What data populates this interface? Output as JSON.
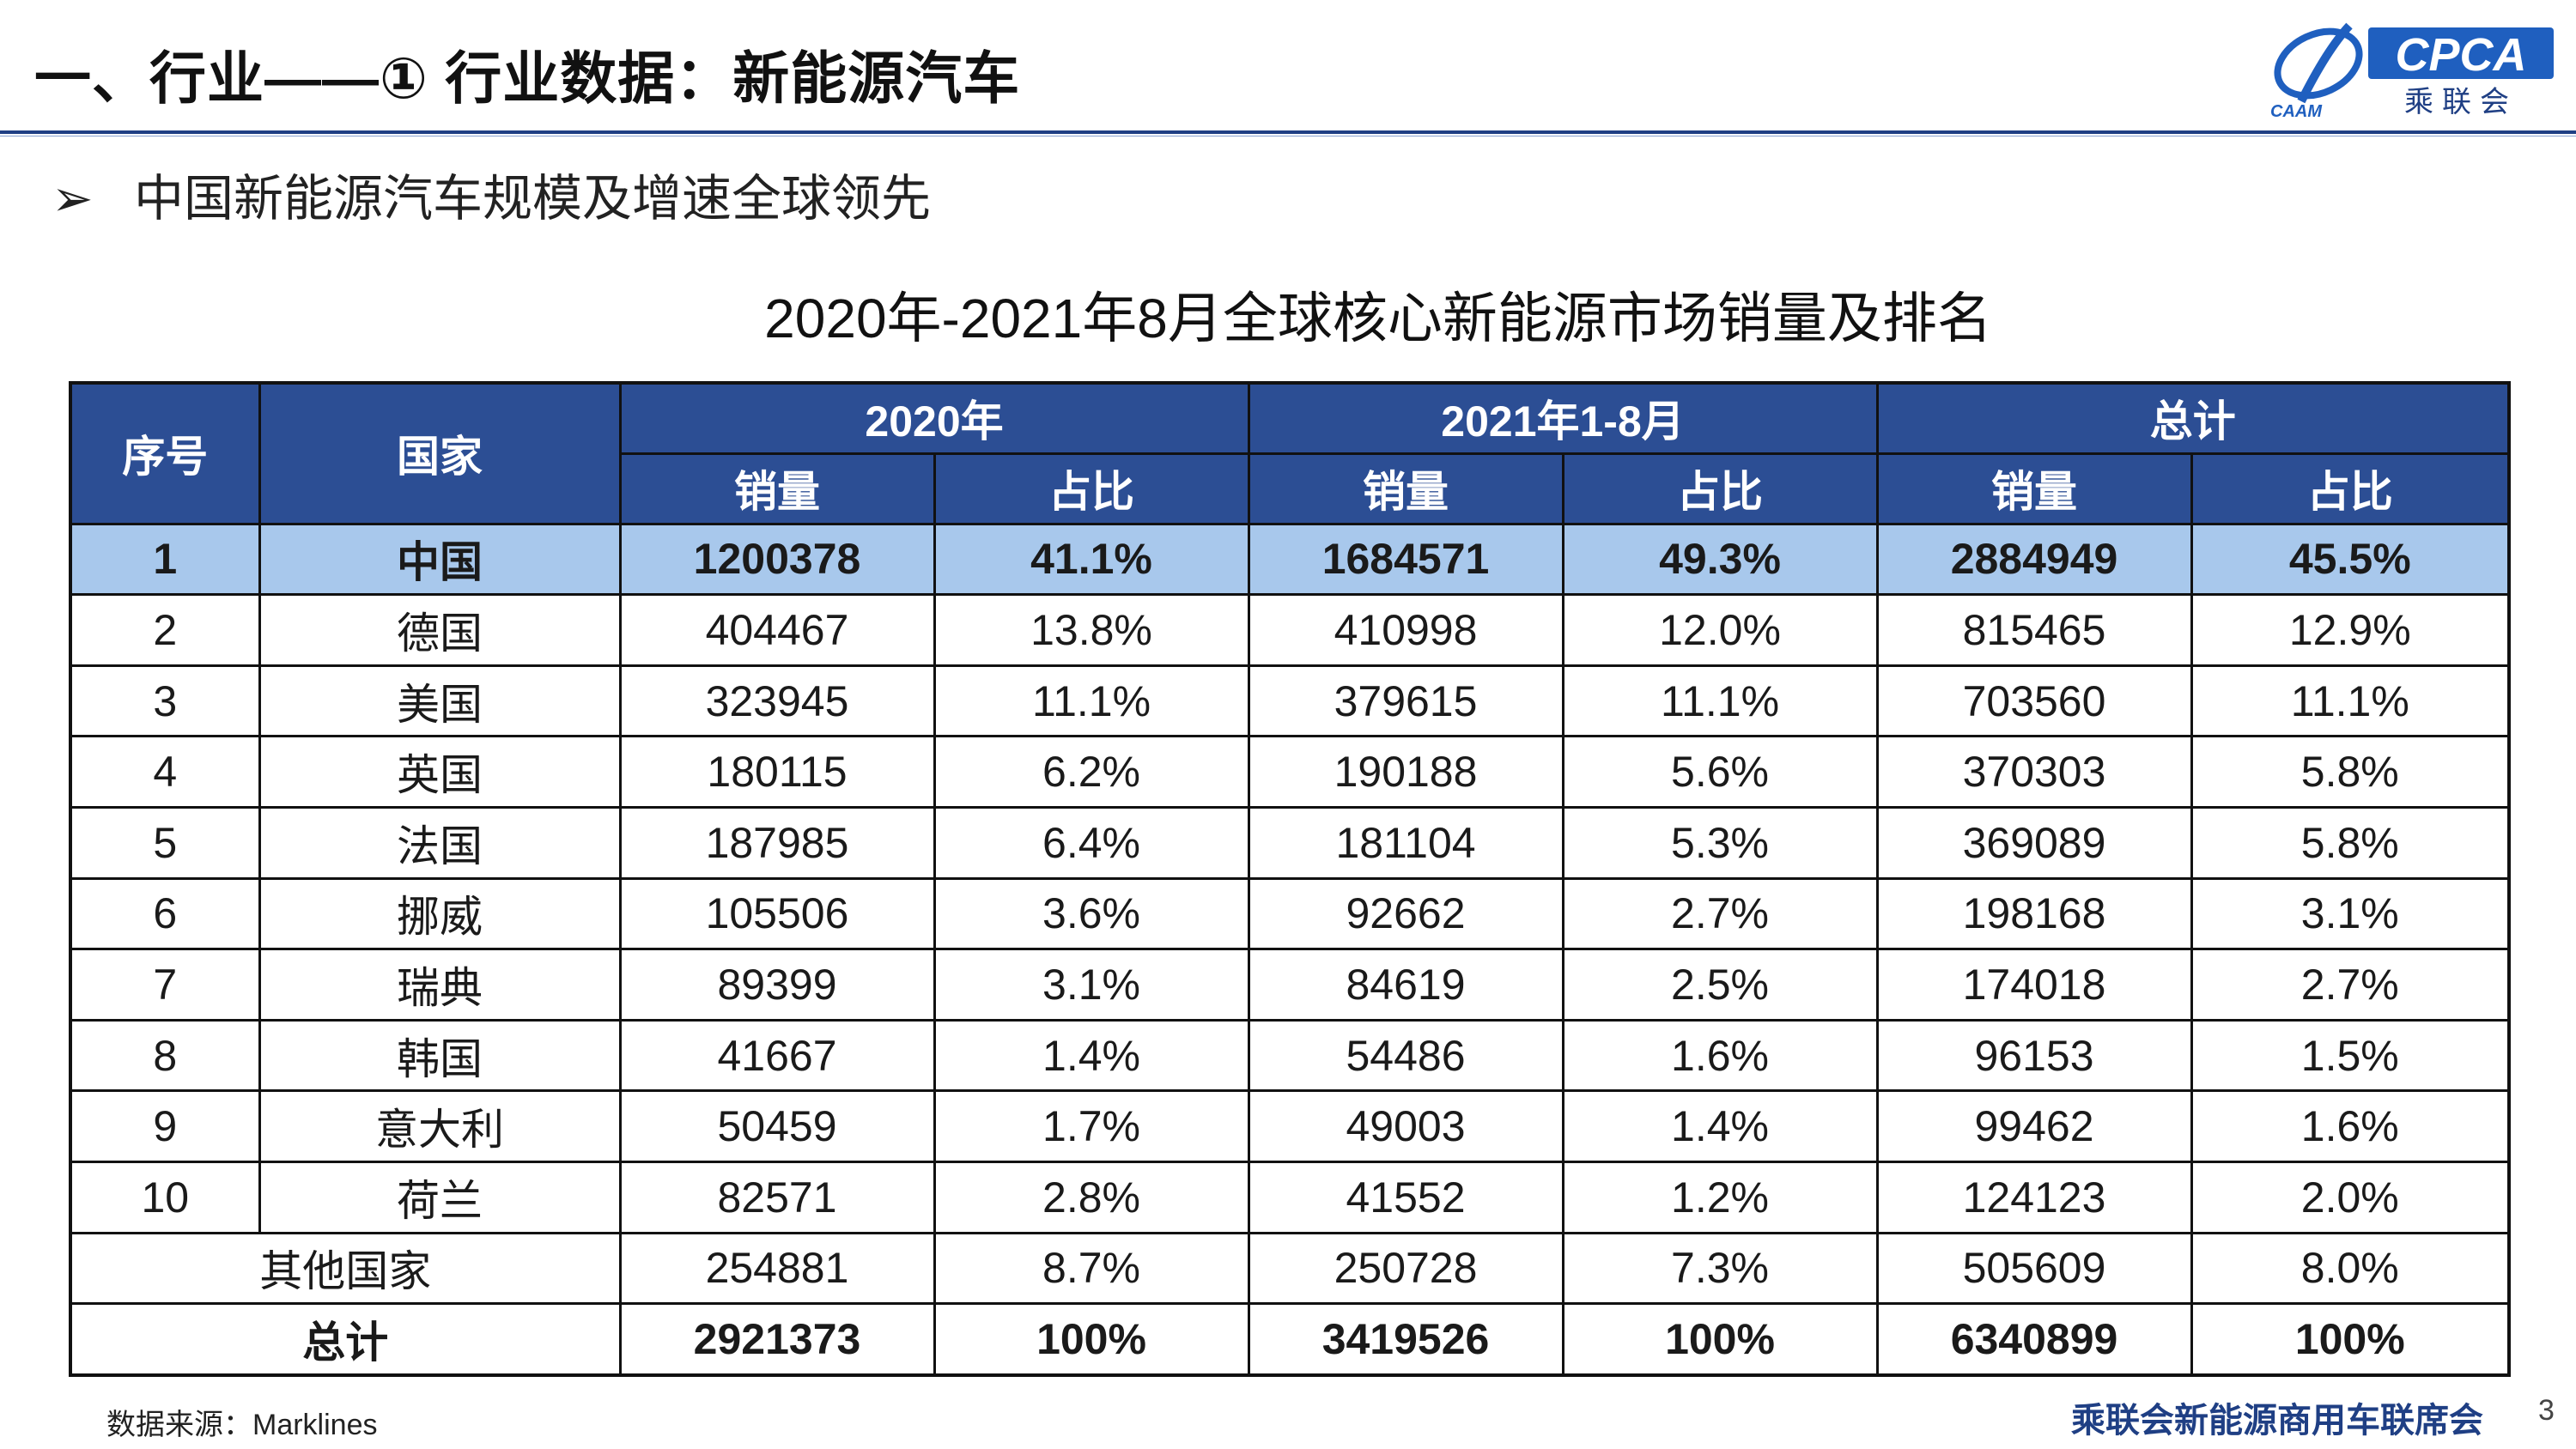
{
  "header": {
    "title": "一、行业——① 行业数据：新能源汽车",
    "logo_text": "CPCA",
    "logo_sub": "乘联会",
    "logo_mark_text": "CAAM"
  },
  "bullet": {
    "icon": "arrow-bullet-icon",
    "text": "中国新能源汽车规模及增速全球领先"
  },
  "table": {
    "title": "2020年-2021年8月全球核心新能源市场销量及排名",
    "headers": {
      "rank": "序号",
      "country": "国家",
      "group_2020": "2020年",
      "group_2021": "2021年1-8月",
      "group_total": "总计",
      "sales": "销量",
      "share": "占比"
    },
    "rows": [
      {
        "rank": "1",
        "country": "中国",
        "s2020": "1200378",
        "p2020": "41.1%",
        "s2021": "1684571",
        "p2021": "49.3%",
        "stotal": "2884949",
        "ptotal": "45.5%"
      },
      {
        "rank": "2",
        "country": "德国",
        "s2020": "404467",
        "p2020": "13.8%",
        "s2021": "410998",
        "p2021": "12.0%",
        "stotal": "815465",
        "ptotal": "12.9%"
      },
      {
        "rank": "3",
        "country": "美国",
        "s2020": "323945",
        "p2020": "11.1%",
        "s2021": "379615",
        "p2021": "11.1%",
        "stotal": "703560",
        "ptotal": "11.1%"
      },
      {
        "rank": "4",
        "country": "英国",
        "s2020": "180115",
        "p2020": "6.2%",
        "s2021": "190188",
        "p2021": "5.6%",
        "stotal": "370303",
        "ptotal": "5.8%"
      },
      {
        "rank": "5",
        "country": "法国",
        "s2020": "187985",
        "p2020": "6.4%",
        "s2021": "181104",
        "p2021": "5.3%",
        "stotal": "369089",
        "ptotal": "5.8%"
      },
      {
        "rank": "6",
        "country": "挪威",
        "s2020": "105506",
        "p2020": "3.6%",
        "s2021": "92662",
        "p2021": "2.7%",
        "stotal": "198168",
        "ptotal": "3.1%"
      },
      {
        "rank": "7",
        "country": "瑞典",
        "s2020": "89399",
        "p2020": "3.1%",
        "s2021": "84619",
        "p2021": "2.5%",
        "stotal": "174018",
        "ptotal": "2.7%"
      },
      {
        "rank": "8",
        "country": "韩国",
        "s2020": "41667",
        "p2020": "1.4%",
        "s2021": "54486",
        "p2021": "1.6%",
        "stotal": "96153",
        "ptotal": "1.5%"
      },
      {
        "rank": "9",
        "country": "意大利",
        "s2020": "50459",
        "p2020": "1.7%",
        "s2021": "49003",
        "p2021": "1.4%",
        "stotal": "99462",
        "ptotal": "1.6%"
      },
      {
        "rank": "10",
        "country": "荷兰",
        "s2020": "82571",
        "p2020": "2.8%",
        "s2021": "41552",
        "p2021": "1.2%",
        "stotal": "124123",
        "ptotal": "2.0%"
      }
    ],
    "others": {
      "label": "其他国家",
      "s2020": "254881",
      "p2020": "8.7%",
      "s2021": "250728",
      "p2021": "7.3%",
      "stotal": "505609",
      "ptotal": "8.0%"
    },
    "total": {
      "label": "总计",
      "s2020": "2921373",
      "p2020": "100%",
      "s2021": "3419526",
      "p2021": "100%",
      "stotal": "6340899",
      "ptotal": "100%"
    }
  },
  "footer": {
    "source": "数据来源：Marklines",
    "org": "乘联会新能源商用车联席会",
    "page": "3"
  },
  "colors": {
    "header_bg": "#2c4e94",
    "highlight_row": "#a8c8ec",
    "accent": "#1f3f84"
  }
}
